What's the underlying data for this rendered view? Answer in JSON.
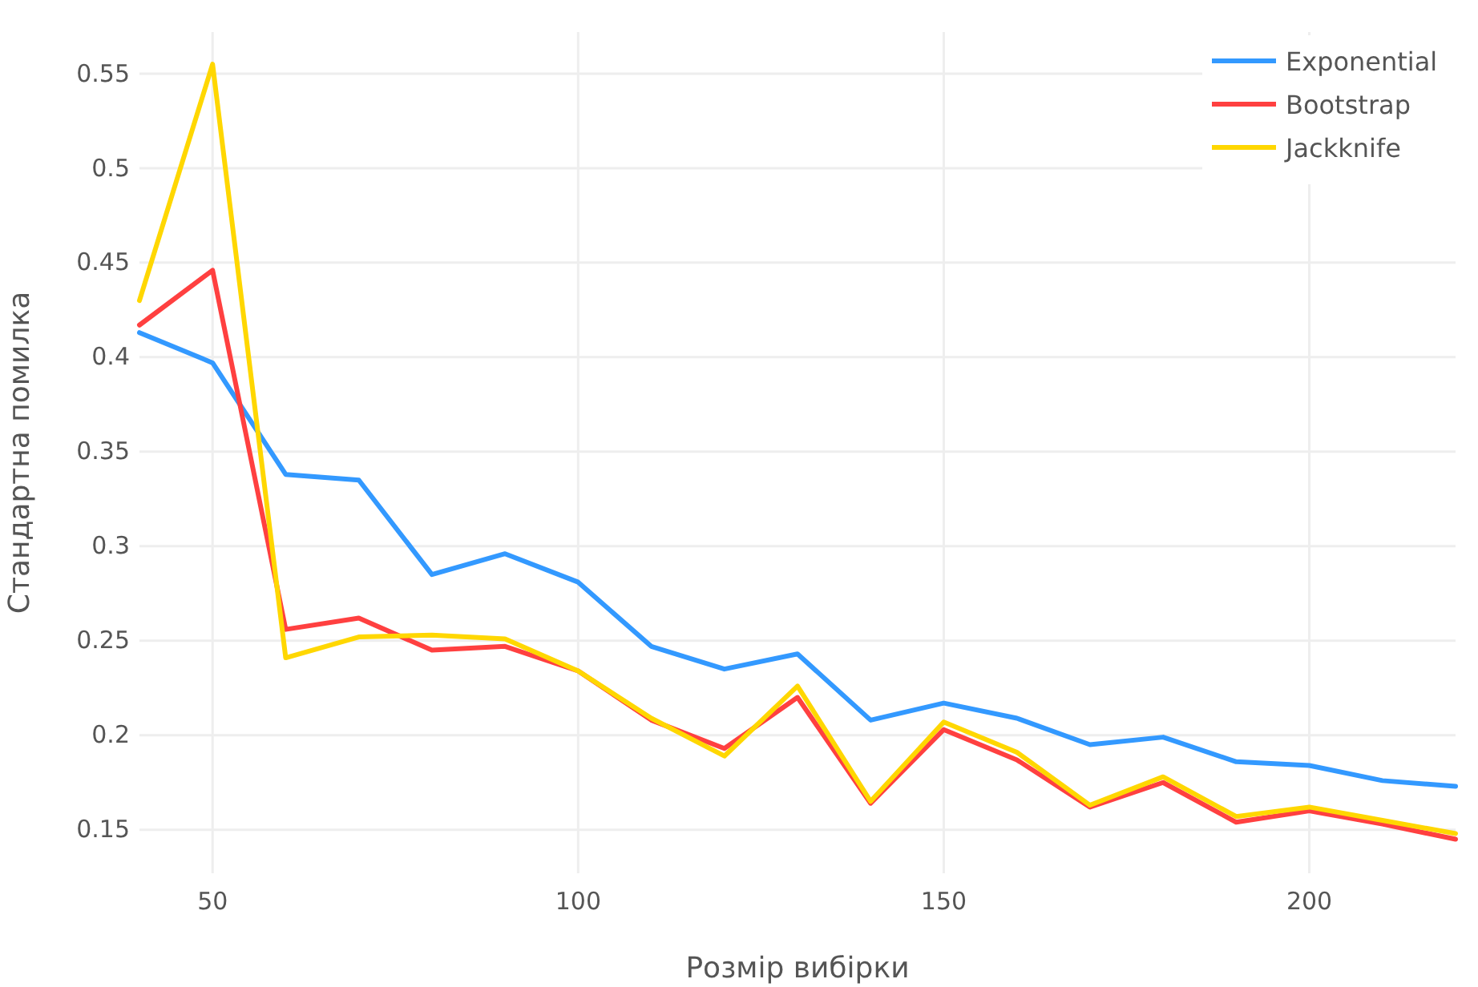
{
  "chart_data": {
    "type": "line",
    "xlabel": "Розмір вибірки",
    "ylabel": "Стандартна помилка",
    "x": [
      40,
      50,
      60,
      70,
      80,
      90,
      100,
      110,
      120,
      130,
      140,
      150,
      160,
      170,
      180,
      190,
      200,
      210,
      220
    ],
    "series": [
      {
        "name": "Exponential",
        "color": "#3399ff",
        "values": [
          0.413,
          0.397,
          0.338,
          0.335,
          0.285,
          0.296,
          0.281,
          0.247,
          0.235,
          0.243,
          0.208,
          0.217,
          0.209,
          0.195,
          0.199,
          0.186,
          0.184,
          0.176,
          0.173
        ]
      },
      {
        "name": "Bootstrap",
        "color": "#ff4040",
        "values": [
          0.417,
          0.446,
          0.256,
          0.262,
          0.245,
          0.247,
          0.234,
          0.208,
          0.193,
          0.22,
          0.164,
          0.203,
          0.187,
          0.162,
          0.175,
          0.154,
          0.16,
          0.153,
          0.145
        ]
      },
      {
        "name": "Jackknife",
        "color": "#ffd700",
        "values": [
          0.43,
          0.555,
          0.241,
          0.252,
          0.253,
          0.251,
          0.234,
          0.209,
          0.189,
          0.226,
          0.165,
          0.207,
          0.191,
          0.163,
          0.178,
          0.157,
          0.162,
          0.155,
          0.148
        ]
      }
    ],
    "xlim": [
      40,
      220
    ],
    "xticks": [
      50,
      100,
      150,
      200
    ],
    "ylim": [
      0.127,
      0.572
    ],
    "yticks": [
      0.15,
      0.2,
      0.25,
      0.3,
      0.35,
      0.4,
      0.45,
      0.5,
      0.55
    ],
    "grid": true,
    "legend": "top right",
    "marker": "none",
    "line_style": "solid"
  }
}
